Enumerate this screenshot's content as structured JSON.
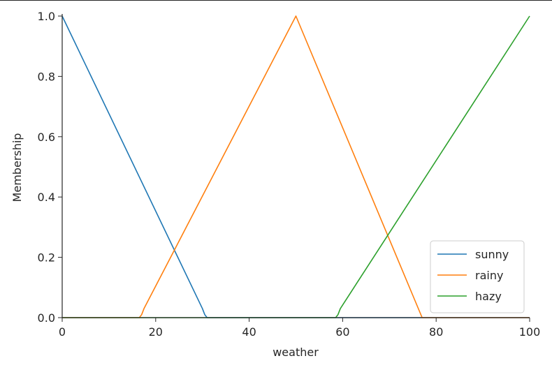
{
  "chart_data": {
    "type": "line",
    "xlabel": "weather",
    "ylabel": "Membership",
    "xlim": [
      0,
      100
    ],
    "ylim": [
      0,
      1.0
    ],
    "x_ticks": [
      "0",
      "20",
      "40",
      "60",
      "80",
      "100"
    ],
    "y_ticks": [
      "0.0",
      "0.2",
      "0.4",
      "0.6",
      "0.8",
      "1.0"
    ],
    "grid": false,
    "legend_position": "lower-right",
    "series": [
      {
        "name": "sunny",
        "color": "#1f77b4",
        "x": [
          0,
          0,
          30,
          30.5,
          31,
          100
        ],
        "y": [
          1,
          1,
          0.03,
          0.01,
          0,
          0
        ]
      },
      {
        "name": "rainy",
        "color": "#ff7f0e",
        "x": [
          0,
          16.5,
          17,
          17.5,
          50,
          77,
          100
        ],
        "y": [
          0,
          0,
          0.01,
          0.03,
          1,
          0,
          0
        ]
      },
      {
        "name": "hazy",
        "color": "#2ca02c",
        "x": [
          0,
          58.5,
          59,
          59.5,
          100
        ],
        "y": [
          0,
          0,
          0.01,
          0.03,
          1
        ]
      }
    ]
  }
}
